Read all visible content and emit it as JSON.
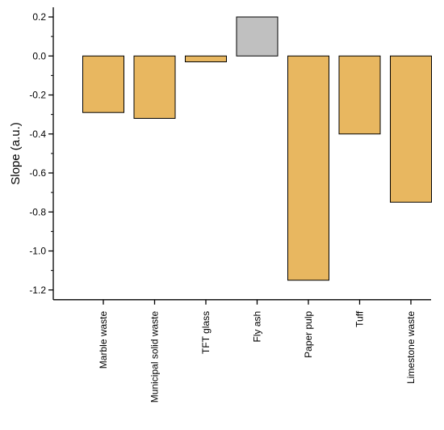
{
  "chart_data": {
    "type": "bar",
    "title": "",
    "xlabel": "",
    "ylabel": "Slope (a.u.)",
    "ylim": [
      -1.25,
      0.25
    ],
    "yticks": [
      0.2,
      0.0,
      -0.2,
      -0.4,
      -0.6,
      -0.8,
      -1.0,
      -1.2
    ],
    "ytick_labels": [
      "0.2",
      "0.0",
      "-0.2",
      "-0.4",
      "-0.6",
      "-0.8",
      "-1.0",
      "-1.2"
    ],
    "categories": [
      "Marble waste",
      "Municipal solid waste",
      "TFT glass",
      "Fly ash",
      "Paper pulp",
      "Tuff",
      "Limestone waste"
    ],
    "values": [
      -0.29,
      -0.32,
      -0.03,
      0.2,
      -1.15,
      -0.4,
      -0.75
    ],
    "colors": [
      "#E8B760",
      "#E8B760",
      "#E8B760",
      "#C0C0C0",
      "#E8B760",
      "#E8B760",
      "#E8B760"
    ],
    "grid": false,
    "legend": "none"
  }
}
